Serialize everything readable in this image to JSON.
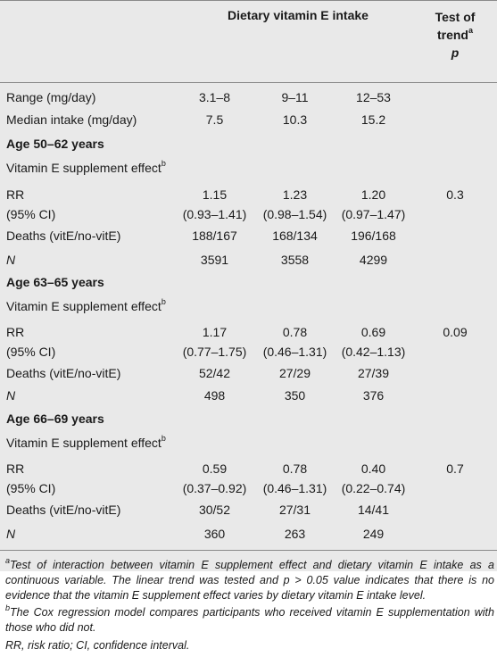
{
  "header": {
    "main": "Dietary vitamin E intake",
    "trend_line1": "Test of",
    "trend_line2": "trend",
    "trend_sup": "a",
    "trend_p": "p"
  },
  "rows": {
    "range": {
      "label": "Range (mg/day)",
      "v": [
        "3.1–8",
        "9–11",
        "12–53"
      ]
    },
    "median": {
      "label": "Median intake (mg/day)",
      "v": [
        "7.5",
        "10.3",
        "15.2"
      ]
    }
  },
  "groups": [
    {
      "title": "Age 50–62 years",
      "effect_label": "Vitamin E supplement effect",
      "effect_sup": "b",
      "rr_label": "RR",
      "ci_label": "(95% CI)",
      "rr": [
        "1.15",
        "1.23",
        "1.20"
      ],
      "ci": [
        "(0.93–1.41)",
        "(0.98–1.54)",
        "(0.97–1.47)"
      ],
      "p": "0.3",
      "deaths_label": "Deaths (vitE/no-vitE)",
      "deaths": [
        "188/167",
        "168/134",
        "196/168"
      ],
      "n_label": "N",
      "n": [
        "3591",
        "3558",
        "4299"
      ]
    },
    {
      "title": "Age 63–65 years",
      "effect_label": "Vitamin E supplement effect",
      "effect_sup": "b",
      "rr_label": "RR",
      "ci_label": "(95% CI)",
      "rr": [
        "1.17",
        "0.78",
        "0.69"
      ],
      "ci": [
        "(0.77–1.75)",
        "(0.46–1.31)",
        "(0.42–1.13)"
      ],
      "p": "0.09",
      "deaths_label": "Deaths (vitE/no-vitE)",
      "deaths": [
        "52/42",
        "27/29",
        "27/39"
      ],
      "n_label": "N",
      "n": [
        "498",
        "350",
        "376"
      ]
    },
    {
      "title": "Age 66–69 years",
      "effect_label": "Vitamin E supplement effect",
      "effect_sup": "b",
      "rr_label": "RR",
      "ci_label": "(95% CI)",
      "rr": [
        "0.59",
        "0.78",
        "0.40"
      ],
      "ci": [
        "(0.37–0.92)",
        "(0.46–1.31)",
        "(0.22–0.74)"
      ],
      "p": "0.7",
      "deaths_label": "Deaths (vitE/no-vitE)",
      "deaths": [
        "30/52",
        "27/31",
        "14/41"
      ],
      "n_label": "N",
      "n": [
        "360",
        "263",
        "249"
      ]
    }
  ],
  "footnotes": {
    "a_mark": "a",
    "a_text": "Test of interaction between vitamin E supplement effect and dietary vitamin E intake as a continuous variable. The linear trend was tested and p > 0.05 value indicates that there is no evidence that the vitamin E supplement effect varies by dietary vitamin E intake level.",
    "b_mark": "b",
    "b_text": "The Cox regression model compares participants who received vitamin E supplementation with those who did not.",
    "abbrev": "RR, risk ratio; CI, confidence interval."
  }
}
